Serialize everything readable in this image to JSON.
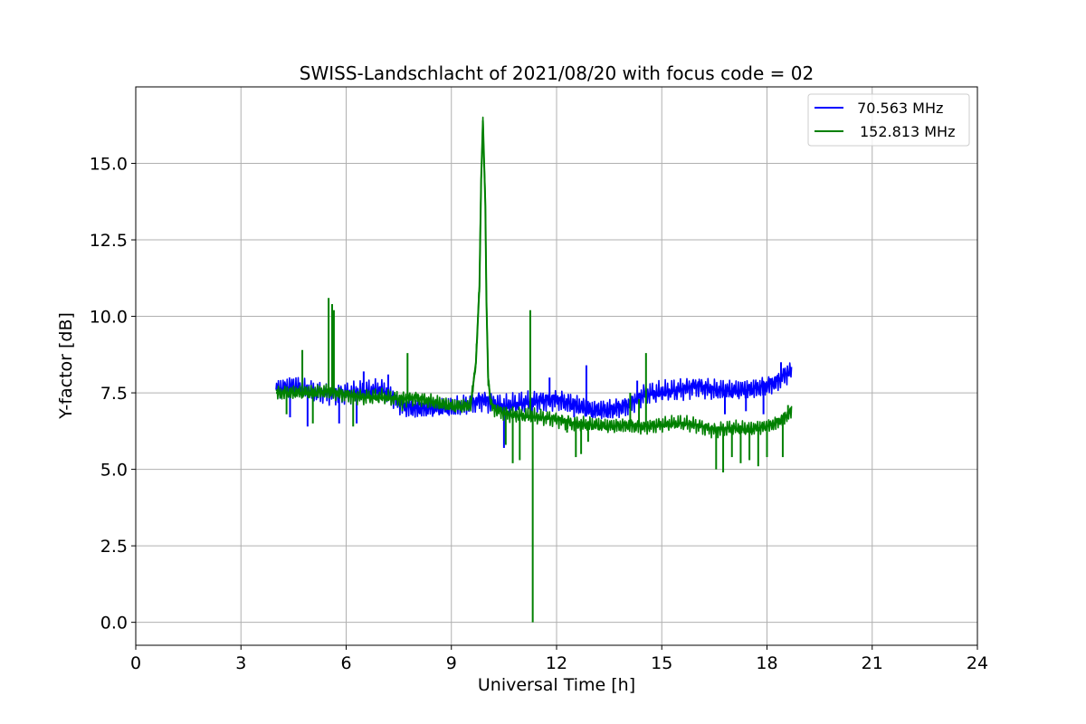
{
  "chart_data": {
    "type": "line",
    "title": "SWISS-Landschlacht of 2021/08/20 with focus code = 02",
    "xlabel": "Universal Time [h]",
    "ylabel": "Y-factor [dB]",
    "xlim": [
      0,
      24
    ],
    "ylim": [
      -0.75,
      17.5
    ],
    "xticks": [
      0,
      3,
      6,
      9,
      12,
      15,
      18,
      21,
      24
    ],
    "xtick_labels": [
      "0",
      "3",
      "6",
      "9",
      "12",
      "15",
      "18",
      "21",
      "24"
    ],
    "yticks": [
      0,
      2.5,
      5,
      7.5,
      10,
      12.5,
      15
    ],
    "ytick_labels": [
      "0.0",
      "2.5",
      "5.0",
      "7.5",
      "10.0",
      "12.5",
      "15.0"
    ],
    "grid": true,
    "legend_position": "top-right",
    "series": [
      {
        "name": " 70.563 MHz",
        "color": "#0000ff",
        "x": [
          4.0,
          4.5,
          5.0,
          5.5,
          6.0,
          6.5,
          7.0,
          7.3,
          7.6,
          8.0,
          8.5,
          9.0,
          9.5,
          9.9,
          10.2,
          10.5,
          11.0,
          11.5,
          12.0,
          12.5,
          13.0,
          13.5,
          14.0,
          14.5,
          15.0,
          15.5,
          16.0,
          16.5,
          17.0,
          17.5,
          18.0,
          18.3,
          18.5,
          18.7
        ],
        "y": [
          7.6,
          7.7,
          7.55,
          7.5,
          7.5,
          7.5,
          7.6,
          7.4,
          7.1,
          7.0,
          7.0,
          7.0,
          7.15,
          7.3,
          7.15,
          7.05,
          7.15,
          7.25,
          7.3,
          7.1,
          6.9,
          6.95,
          7.1,
          7.45,
          7.5,
          7.6,
          7.75,
          7.6,
          7.55,
          7.6,
          7.75,
          7.9,
          8.1,
          8.2
        ],
        "spikes": [
          {
            "x": 4.4,
            "y": 6.7
          },
          {
            "x": 4.9,
            "y": 6.4
          },
          {
            "x": 5.8,
            "y": 6.5
          },
          {
            "x": 6.3,
            "y": 6.5
          },
          {
            "x": 6.5,
            "y": 8.2
          },
          {
            "x": 7.2,
            "y": 8.1
          },
          {
            "x": 8.9,
            "y": 6.9
          },
          {
            "x": 10.5,
            "y": 5.7
          },
          {
            "x": 11.3,
            "y": 6.6
          },
          {
            "x": 11.8,
            "y": 8.0
          },
          {
            "x": 12.5,
            "y": 6.7
          },
          {
            "x": 12.85,
            "y": 8.4
          },
          {
            "x": 13.5,
            "y": 6.8
          },
          {
            "x": 14.3,
            "y": 7.9
          },
          {
            "x": 15.4,
            "y": 7.4
          },
          {
            "x": 16.8,
            "y": 6.8
          },
          {
            "x": 17.4,
            "y": 6.9
          },
          {
            "x": 17.9,
            "y": 6.8
          },
          {
            "x": 18.4,
            "y": 8.5
          }
        ]
      },
      {
        "name": "152.813 MHz",
        "color": "#008000",
        "x": [
          4.0,
          4.5,
          5.0,
          5.5,
          6.0,
          6.5,
          7.0,
          7.5,
          8.0,
          8.5,
          9.0,
          9.3,
          9.55,
          9.7,
          9.8,
          9.85,
          9.9,
          9.93,
          9.97,
          10.0,
          10.05,
          10.12,
          10.2,
          10.4,
          10.6,
          11.0,
          11.5,
          12.0,
          12.5,
          13.0,
          13.5,
          14.0,
          14.5,
          15.0,
          15.5,
          16.0,
          16.5,
          17.0,
          17.5,
          18.0,
          18.3,
          18.5,
          18.7
        ],
        "y": [
          7.5,
          7.5,
          7.5,
          7.55,
          7.45,
          7.35,
          7.35,
          7.3,
          7.35,
          7.2,
          7.05,
          7.05,
          7.1,
          8.5,
          11.0,
          14.5,
          16.4,
          15.2,
          13.6,
          10.5,
          8.0,
          7.2,
          7.0,
          6.9,
          6.8,
          6.75,
          6.7,
          6.65,
          6.5,
          6.45,
          6.4,
          6.45,
          6.4,
          6.45,
          6.5,
          6.45,
          6.3,
          6.35,
          6.3,
          6.4,
          6.55,
          6.7,
          6.9
        ],
        "spikes": [
          {
            "x": 4.75,
            "y": 8.9
          },
          {
            "x": 5.5,
            "y": 10.6
          },
          {
            "x": 5.6,
            "y": 10.4
          },
          {
            "x": 5.65,
            "y": 10.2
          },
          {
            "x": 4.3,
            "y": 6.8
          },
          {
            "x": 5.05,
            "y": 6.5
          },
          {
            "x": 6.2,
            "y": 6.4
          },
          {
            "x": 7.75,
            "y": 8.8
          },
          {
            "x": 7.6,
            "y": 6.9
          },
          {
            "x": 8.75,
            "y": 7.0
          },
          {
            "x": 10.55,
            "y": 5.8
          },
          {
            "x": 10.75,
            "y": 5.2
          },
          {
            "x": 10.95,
            "y": 5.3
          },
          {
            "x": 11.25,
            "y": 10.2
          },
          {
            "x": 11.32,
            "y": 0.0
          },
          {
            "x": 12.3,
            "y": 6.2
          },
          {
            "x": 12.55,
            "y": 5.4
          },
          {
            "x": 12.7,
            "y": 5.5
          },
          {
            "x": 12.9,
            "y": 5.9
          },
          {
            "x": 14.1,
            "y": 7.5
          },
          {
            "x": 14.35,
            "y": 7.3
          },
          {
            "x": 14.55,
            "y": 8.8
          },
          {
            "x": 16.55,
            "y": 5.0
          },
          {
            "x": 16.75,
            "y": 4.9
          },
          {
            "x": 17.0,
            "y": 5.4
          },
          {
            "x": 17.25,
            "y": 5.2
          },
          {
            "x": 17.5,
            "y": 5.3
          },
          {
            "x": 17.75,
            "y": 5.1
          },
          {
            "x": 18.0,
            "y": 5.4
          },
          {
            "x": 18.45,
            "y": 5.4
          },
          {
            "x": 18.6,
            "y": 7.1
          }
        ]
      }
    ]
  }
}
